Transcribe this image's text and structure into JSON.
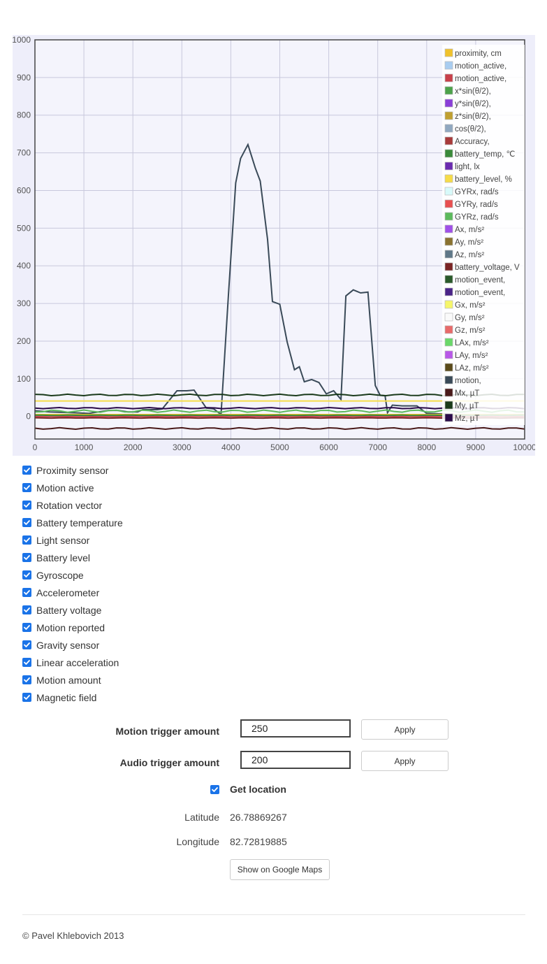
{
  "chart_data": {
    "type": "line",
    "xlim": [
      0,
      10000
    ],
    "ylim": [
      -60,
      1000
    ],
    "xticks": [
      0,
      1000,
      2000,
      3000,
      4000,
      5000,
      6000,
      7000,
      8000,
      9000,
      10000
    ],
    "yticks": [
      0,
      100,
      200,
      300,
      400,
      500,
      600,
      700,
      800,
      900,
      1000
    ],
    "grid": true,
    "legend_position": "top-right",
    "legend": [
      {
        "name": "proximity, cm",
        "color": "#f0c22c"
      },
      {
        "name": "motion_active,",
        "color": "#a9cdf0"
      },
      {
        "name": "motion_active,",
        "color": "#c8404a"
      },
      {
        "name": "x*sin(θ/2),",
        "color": "#4ca24a"
      },
      {
        "name": "y*sin(θ/2),",
        "color": "#8a3fd8"
      },
      {
        "name": "z*sin(θ/2),",
        "color": "#c0a030"
      },
      {
        "name": "cos(θ/2),",
        "color": "#90a8c0"
      },
      {
        "name": "Accuracy,",
        "color": "#a83a3a"
      },
      {
        "name": "battery_temp, ℃",
        "color": "#3a8a3a"
      },
      {
        "name": "light, lx",
        "color": "#6a2ab0"
      },
      {
        "name": "battery_level, %",
        "color": "#f6dc48"
      },
      {
        "name": "GYRx, rad/s",
        "color": "#d8fafa"
      },
      {
        "name": "GYRy, rad/s",
        "color": "#e85050"
      },
      {
        "name": "GYRz, rad/s",
        "color": "#5cba5c"
      },
      {
        "name": "Ax, m/s²",
        "color": "#a050e8"
      },
      {
        "name": "Ay, m/s²",
        "color": "#8a7230"
      },
      {
        "name": "Az, m/s²",
        "color": "#607888"
      },
      {
        "name": "battery_voltage, V",
        "color": "#7a2424"
      },
      {
        "name": "motion_event,",
        "color": "#2a5a2a"
      },
      {
        "name": "motion_event,",
        "color": "#4a2488"
      },
      {
        "name": "Gx, m/s²",
        "color": "#f6f66a"
      },
      {
        "name": "Gy, m/s²",
        "color": "#fafafa"
      },
      {
        "name": "Gz, m/s²",
        "color": "#e86a6a"
      },
      {
        "name": "LAx, m/s²",
        "color": "#6ad86a"
      },
      {
        "name": "LAy, m/s²",
        "color": "#b858e8"
      },
      {
        "name": "LAz, m/s²",
        "color": "#5a4a1a"
      },
      {
        "name": "motion,",
        "color": "#3a4a58"
      },
      {
        "name": "Mx, µT",
        "color": "#4a1a1a"
      },
      {
        "name": "My, µT",
        "color": "#1a3a1a"
      },
      {
        "name": "Mz, µT",
        "color": "#2a0a48"
      }
    ],
    "series": [
      {
        "legend_index": 26,
        "color": "#3a4a58",
        "x": [
          0,
          100,
          300,
          500,
          700,
          900,
          1100,
          1300,
          1500,
          1700,
          1900,
          2100,
          2200,
          2500,
          2600,
          2900,
          3000,
          3100,
          3250,
          3500,
          3650,
          3800,
          3950,
          4100,
          4200,
          4350,
          4500,
          4600,
          4750,
          4850,
          5000,
          5150,
          5300,
          5400,
          5500,
          5650,
          5800,
          5950,
          6100,
          6250,
          6350,
          6500,
          6650,
          6800,
          6950,
          7050,
          7150,
          7200,
          7300,
          7500,
          7800,
          8000,
          8200,
          8400
        ],
        "y": [
          15,
          14,
          12,
          11,
          10,
          9,
          8,
          12,
          16,
          16,
          12,
          12,
          18,
          18,
          20,
          68,
          68,
          68,
          70,
          22,
          20,
          5,
          320,
          620,
          685,
          722,
          660,
          625,
          470,
          305,
          298,
          198,
          124,
          132,
          92,
          98,
          90,
          60,
          68,
          45,
          320,
          336,
          328,
          330,
          82,
          56,
          55,
          10,
          30,
          28,
          28,
          8,
          7,
          6
        ]
      },
      {
        "legend_index": 28,
        "color": "#1a3a1a",
        "x": [
          0,
          10000
        ],
        "y": [
          57,
          57
        ],
        "noise": 2
      },
      {
        "legend_index": 10,
        "color": "#f6dc48",
        "x": [
          0,
          10000
        ],
        "y": [
          41,
          41
        ],
        "noise": 0
      },
      {
        "legend_index": 29,
        "color": "#2a0a48",
        "x": [
          0,
          10000
        ],
        "y": [
          22,
          22
        ],
        "noise": 1.5
      },
      {
        "legend_index": 13,
        "color": "#5cba5c",
        "x": [
          0,
          10000
        ],
        "y": [
          14,
          14
        ],
        "noise": 3
      },
      {
        "legend_index": 0,
        "color": "#f0c22c",
        "x": [
          0,
          10000
        ],
        "y": [
          5,
          5
        ],
        "noise": 0
      },
      {
        "legend_index": 2,
        "color": "#c8404a",
        "x": [
          0,
          10000
        ],
        "y": [
          0,
          0
        ],
        "noise": 0
      },
      {
        "legend_index": 8,
        "color": "#3a8a3a",
        "x": [
          0,
          10000
        ],
        "y": [
          3,
          3
        ],
        "noise": 0.5
      },
      {
        "legend_index": 17,
        "color": "#7a2424",
        "x": [
          0,
          10000
        ],
        "y": [
          -4,
          -4
        ],
        "noise": 0.5
      },
      {
        "legend_index": 27,
        "color": "#4a1a1a",
        "x": [
          0,
          10000
        ],
        "y": [
          -32,
          -32
        ],
        "noise": 2
      }
    ]
  },
  "sensors": {
    "items": [
      {
        "label": "Proximity sensor",
        "checked": true
      },
      {
        "label": "Motion active",
        "checked": true
      },
      {
        "label": "Rotation vector",
        "checked": true
      },
      {
        "label": "Battery temperature",
        "checked": true
      },
      {
        "label": "Light sensor",
        "checked": true
      },
      {
        "label": "Battery level",
        "checked": true
      },
      {
        "label": "Gyroscope",
        "checked": true
      },
      {
        "label": "Accelerometer",
        "checked": true
      },
      {
        "label": "Battery voltage",
        "checked": true
      },
      {
        "label": "Motion reported",
        "checked": true
      },
      {
        "label": "Gravity sensor",
        "checked": true
      },
      {
        "label": "Linear acceleration",
        "checked": true
      },
      {
        "label": "Motion amount",
        "checked": true
      },
      {
        "label": "Magnetic field",
        "checked": true
      }
    ]
  },
  "form": {
    "motion_label": "Motion trigger amount",
    "motion_value": "250",
    "audio_label": "Audio trigger amount",
    "audio_value": "200",
    "apply_label": "Apply",
    "get_location_label": "Get location",
    "get_location_checked": true,
    "latitude_label": "Latitude",
    "latitude_value": "26.78869267",
    "longitude_label": "Longitude",
    "longitude_value": "82.72819885",
    "maps_button_label": "Show on Google Maps"
  },
  "footer": {
    "copyright": "© Pavel Khlebovich 2013"
  },
  "colors": {
    "checkbox": "#1a73e8",
    "plot_background": "#eeeefa",
    "grid": "#c8c8dc"
  }
}
